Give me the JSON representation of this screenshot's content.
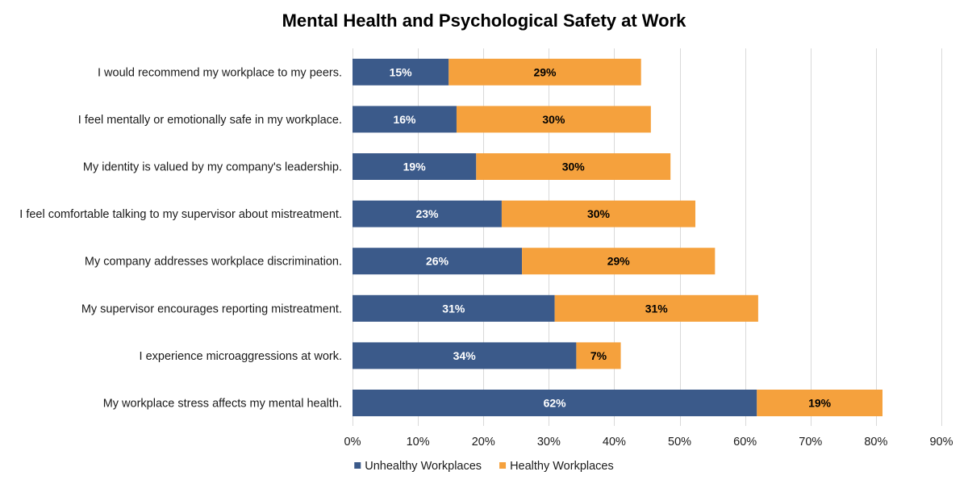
{
  "chart_data": {
    "type": "bar",
    "orientation": "horizontal",
    "stacked": true,
    "title": "Mental Health and Psychological Safety at Work",
    "xlabel": "",
    "ylabel": "",
    "xlim": [
      0,
      90
    ],
    "x_ticks": [
      "0%",
      "10%",
      "20%",
      "30%",
      "40%",
      "50%",
      "60%",
      "70%",
      "80%",
      "90%"
    ],
    "x_tick_values": [
      0,
      10,
      20,
      30,
      40,
      50,
      60,
      70,
      80,
      90
    ],
    "grid": true,
    "legend_position": "bottom",
    "categories": [
      "I would recommend my workplace to my peers.",
      "I feel mentally or emotionally safe in my workplace.",
      "My identity is valued by my company's leadership.",
      "I feel comfortable talking to my supervisor about mistreatment.",
      "My company addresses workplace discrimination.",
      "My supervisor encourages reporting mistreatment.",
      "I experience microaggressions at work.",
      "My workplace stress affects my mental health."
    ],
    "series": [
      {
        "name": "Unhealthy Workplaces",
        "color": "#3b5a8a",
        "label_color": "#ffffff",
        "values": [
          14.7,
          15.9,
          18.9,
          22.8,
          25.9,
          30.9,
          34.2,
          61.8
        ],
        "labels": [
          "15%",
          "16%",
          "19%",
          "23%",
          "26%",
          "31%",
          "34%",
          "62%"
        ]
      },
      {
        "name": "Healthy Workplaces",
        "color": "#f5a13d",
        "label_color": "#000000",
        "values": [
          29.4,
          29.7,
          29.7,
          29.6,
          29.5,
          31.1,
          6.8,
          19.2
        ],
        "labels": [
          "29%",
          "30%",
          "30%",
          "30%",
          "29%",
          "31%",
          "7%",
          "19%"
        ]
      }
    ]
  }
}
